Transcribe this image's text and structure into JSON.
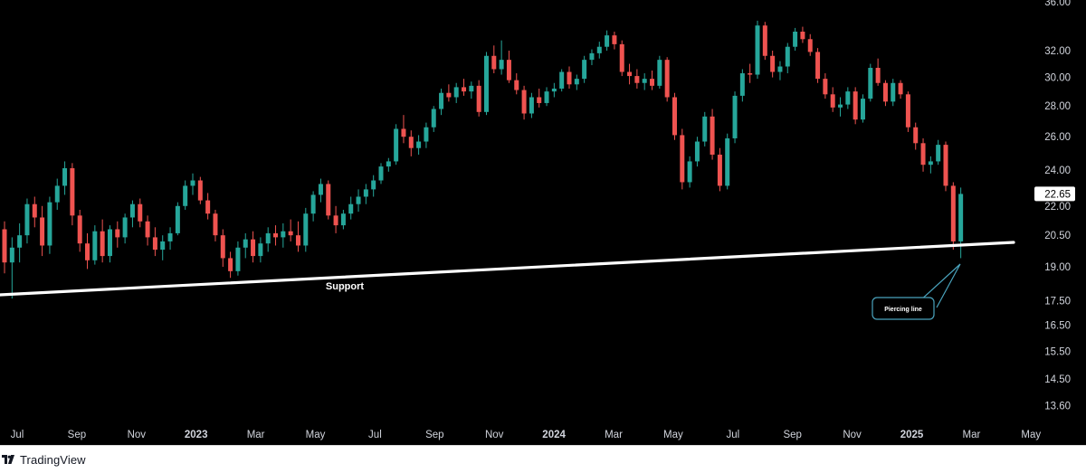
{
  "chart_data": {
    "type": "candlestick",
    "title": "",
    "timeframe": "weekly",
    "y_ticks": [
      "36.00",
      "32.00",
      "30.00",
      "28.00",
      "26.00",
      "24.00",
      "22.00",
      "20.50",
      "19.00",
      "17.50",
      "16.50",
      "15.50",
      "14.50",
      "13.60"
    ],
    "y_scale": "log",
    "ylim": [
      12.7,
      36.5
    ],
    "x_ticks": [
      {
        "label": "Jul",
        "date": "2022-07",
        "bold": false
      },
      {
        "label": "Sep",
        "date": "2022-09",
        "bold": false
      },
      {
        "label": "Nov",
        "date": "2022-11",
        "bold": false
      },
      {
        "label": "2023",
        "date": "2023-01",
        "bold": true
      },
      {
        "label": "Mar",
        "date": "2023-03",
        "bold": false
      },
      {
        "label": "May",
        "date": "2023-05",
        "bold": false
      },
      {
        "label": "Jul",
        "date": "2023-07",
        "bold": false
      },
      {
        "label": "Sep",
        "date": "2023-09",
        "bold": false
      },
      {
        "label": "Nov",
        "date": "2023-11",
        "bold": false
      },
      {
        "label": "2024",
        "date": "2024-01",
        "bold": true
      },
      {
        "label": "Mar",
        "date": "2024-03",
        "bold": false
      },
      {
        "label": "May",
        "date": "2024-05",
        "bold": false
      },
      {
        "label": "Jul",
        "date": "2024-07",
        "bold": false
      },
      {
        "label": "Sep",
        "date": "2024-09",
        "bold": false
      },
      {
        "label": "Nov",
        "date": "2024-11",
        "bold": false
      },
      {
        "label": "2025",
        "date": "2025-01",
        "bold": true
      },
      {
        "label": "Mar",
        "date": "2025-03",
        "bold": false
      },
      {
        "label": "May",
        "date": "2025-05",
        "bold": false
      }
    ],
    "last_price": "22.65",
    "last_price_value": 22.65,
    "up_color": "#26a69a",
    "down_color": "#ef5350",
    "support_line": {
      "label": "Support",
      "start": {
        "date": "2022-06",
        "value": 17.7
      },
      "end": {
        "date": "2025-05",
        "value": 20.1
      }
    },
    "annotation": {
      "label": "Piercing line",
      "target_date": "2025-04",
      "target_value": 19.5
    },
    "series": [
      {
        "name": "",
        "ohlc": [
          [
            20.8,
            21.2,
            18.7,
            19.2
          ],
          [
            19.2,
            20.4,
            17.6,
            19.9
          ],
          [
            19.9,
            21.1,
            19.2,
            20.5
          ],
          [
            20.5,
            22.4,
            20.1,
            22.1
          ],
          [
            22.1,
            22.5,
            20.9,
            21.4
          ],
          [
            21.4,
            22.0,
            19.5,
            20.0
          ],
          [
            20.0,
            22.5,
            19.6,
            22.2
          ],
          [
            22.2,
            23.5,
            21.8,
            23.1
          ],
          [
            23.1,
            24.5,
            22.6,
            24.1
          ],
          [
            24.1,
            24.4,
            21.0,
            21.5
          ],
          [
            21.5,
            21.8,
            19.7,
            20.1
          ],
          [
            20.1,
            20.6,
            18.9,
            19.3
          ],
          [
            19.3,
            21.0,
            19.1,
            20.7
          ],
          [
            20.7,
            21.3,
            19.2,
            19.5
          ],
          [
            19.5,
            21.0,
            19.2,
            20.8
          ],
          [
            20.8,
            21.2,
            19.9,
            20.4
          ],
          [
            20.4,
            21.6,
            20.1,
            21.4
          ],
          [
            21.4,
            22.3,
            20.9,
            22.1
          ],
          [
            22.1,
            22.4,
            20.9,
            21.2
          ],
          [
            21.2,
            21.5,
            20.0,
            20.4
          ],
          [
            20.4,
            20.9,
            19.5,
            19.8
          ],
          [
            19.8,
            20.5,
            19.3,
            20.2
          ],
          [
            20.2,
            20.9,
            19.8,
            20.6
          ],
          [
            20.6,
            22.2,
            20.5,
            22.0
          ],
          [
            22.0,
            23.4,
            21.8,
            23.1
          ],
          [
            23.1,
            23.8,
            22.6,
            23.4
          ],
          [
            23.4,
            23.6,
            22.1,
            22.3
          ],
          [
            22.3,
            22.7,
            21.3,
            21.6
          ],
          [
            21.6,
            21.8,
            20.2,
            20.5
          ],
          [
            20.5,
            20.8,
            19.0,
            19.4
          ],
          [
            19.4,
            19.7,
            18.5,
            18.8
          ],
          [
            18.8,
            20.2,
            18.6,
            19.9
          ],
          [
            19.9,
            20.6,
            19.4,
            20.3
          ],
          [
            20.3,
            20.7,
            19.2,
            19.5
          ],
          [
            19.5,
            20.4,
            19.2,
            20.1
          ],
          [
            20.1,
            20.9,
            19.7,
            20.6
          ],
          [
            20.6,
            21.0,
            20.0,
            20.4
          ],
          [
            20.4,
            21.1,
            19.9,
            20.7
          ],
          [
            20.7,
            21.3,
            20.2,
            20.5
          ],
          [
            20.5,
            21.2,
            19.7,
            20.0
          ],
          [
            20.0,
            21.9,
            19.7,
            21.6
          ],
          [
            21.6,
            22.8,
            21.2,
            22.6
          ],
          [
            22.6,
            23.5,
            22.2,
            23.2
          ],
          [
            23.2,
            23.4,
            21.3,
            21.5
          ],
          [
            21.5,
            22.0,
            20.6,
            21.0
          ],
          [
            21.0,
            21.8,
            20.8,
            21.6
          ],
          [
            21.6,
            22.5,
            21.3,
            22.1
          ],
          [
            22.1,
            22.9,
            21.7,
            22.5
          ],
          [
            22.5,
            23.2,
            22.1,
            22.9
          ],
          [
            22.9,
            23.7,
            22.5,
            23.4
          ],
          [
            23.4,
            24.4,
            23.2,
            24.2
          ],
          [
            24.2,
            24.7,
            23.9,
            24.5
          ],
          [
            24.5,
            26.8,
            24.3,
            26.5
          ],
          [
            26.5,
            27.4,
            25.6,
            26.0
          ],
          [
            26.0,
            26.4,
            24.8,
            25.3
          ],
          [
            25.3,
            26.1,
            24.9,
            25.7
          ],
          [
            25.7,
            26.9,
            25.3,
            26.6
          ],
          [
            26.6,
            28.0,
            26.3,
            27.8
          ],
          [
            27.8,
            29.2,
            27.4,
            28.9
          ],
          [
            28.9,
            29.5,
            28.3,
            28.6
          ],
          [
            28.6,
            29.6,
            28.2,
            29.3
          ],
          [
            29.3,
            29.9,
            28.7,
            29.0
          ],
          [
            29.0,
            29.7,
            28.5,
            29.4
          ],
          [
            29.4,
            29.8,
            27.3,
            27.6
          ],
          [
            27.6,
            31.9,
            27.4,
            31.6
          ],
          [
            31.6,
            32.4,
            30.3,
            30.6
          ],
          [
            30.6,
            32.8,
            30.2,
            31.3
          ],
          [
            31.3,
            32.0,
            29.6,
            29.8
          ],
          [
            29.8,
            30.3,
            28.8,
            29.1
          ],
          [
            29.1,
            29.4,
            27.1,
            27.5
          ],
          [
            27.5,
            28.9,
            27.2,
            28.6
          ],
          [
            28.6,
            29.2,
            27.9,
            28.2
          ],
          [
            28.2,
            29.3,
            28.0,
            29.0
          ],
          [
            29.0,
            29.6,
            28.6,
            29.2
          ],
          [
            29.2,
            30.6,
            29.0,
            30.4
          ],
          [
            30.4,
            30.8,
            29.2,
            29.5
          ],
          [
            29.5,
            30.2,
            29.1,
            29.9
          ],
          [
            29.9,
            31.6,
            29.6,
            31.3
          ],
          [
            31.3,
            32.1,
            30.9,
            31.8
          ],
          [
            31.8,
            32.7,
            31.4,
            32.3
          ],
          [
            32.3,
            33.6,
            32.0,
            33.2
          ],
          [
            33.2,
            33.5,
            32.1,
            32.5
          ],
          [
            32.5,
            32.8,
            30.1,
            30.4
          ],
          [
            30.4,
            31.0,
            29.5,
            30.1
          ],
          [
            30.1,
            30.6,
            29.2,
            29.6
          ],
          [
            29.6,
            30.3,
            29.1,
            29.9
          ],
          [
            29.9,
            30.5,
            29.1,
            29.4
          ],
          [
            29.4,
            31.6,
            29.2,
            31.3
          ],
          [
            31.3,
            31.5,
            28.3,
            28.6
          ],
          [
            28.6,
            28.9,
            25.8,
            26.1
          ],
          [
            26.1,
            26.5,
            22.9,
            23.3
          ],
          [
            23.3,
            24.8,
            23.0,
            24.5
          ],
          [
            24.5,
            26.0,
            24.2,
            25.7
          ],
          [
            25.7,
            27.6,
            25.4,
            27.3
          ],
          [
            27.3,
            27.8,
            24.6,
            24.9
          ],
          [
            24.9,
            25.3,
            22.8,
            23.1
          ],
          [
            23.1,
            26.2,
            22.9,
            25.9
          ],
          [
            25.9,
            29.0,
            25.6,
            28.7
          ],
          [
            28.7,
            30.6,
            28.3,
            30.3
          ],
          [
            30.3,
            31.0,
            29.6,
            30.2
          ],
          [
            30.2,
            34.4,
            29.9,
            34.0
          ],
          [
            34.0,
            34.3,
            31.3,
            31.6
          ],
          [
            31.6,
            32.0,
            30.0,
            30.4
          ],
          [
            30.4,
            31.2,
            29.8,
            30.8
          ],
          [
            30.8,
            32.6,
            30.3,
            32.3
          ],
          [
            32.3,
            33.8,
            32.0,
            33.5
          ],
          [
            33.5,
            33.9,
            32.6,
            32.9
          ],
          [
            32.9,
            33.3,
            31.6,
            31.9
          ],
          [
            31.9,
            32.2,
            29.6,
            29.9
          ],
          [
            29.9,
            30.3,
            28.5,
            28.8
          ],
          [
            28.8,
            29.3,
            27.6,
            27.9
          ],
          [
            27.9,
            28.6,
            27.3,
            28.1
          ],
          [
            28.1,
            29.3,
            27.8,
            29.0
          ],
          [
            29.0,
            29.3,
            26.8,
            27.1
          ],
          [
            27.1,
            28.8,
            26.9,
            28.5
          ],
          [
            28.5,
            31.0,
            28.3,
            30.7
          ],
          [
            30.7,
            31.4,
            29.4,
            29.6
          ],
          [
            29.6,
            29.8,
            28.0,
            28.3
          ],
          [
            28.3,
            29.9,
            28.0,
            29.6
          ],
          [
            29.6,
            29.8,
            28.5,
            28.8
          ],
          [
            28.8,
            29.0,
            26.3,
            26.6
          ],
          [
            26.6,
            26.9,
            25.2,
            25.6
          ],
          [
            25.6,
            25.9,
            23.9,
            24.3
          ],
          [
            24.3,
            24.8,
            23.8,
            24.5
          ],
          [
            24.5,
            25.8,
            24.3,
            25.5
          ],
          [
            25.5,
            25.7,
            22.8,
            23.1
          ],
          [
            23.1,
            23.3,
            19.8,
            20.2
          ],
          [
            20.2,
            23.0,
            19.4,
            22.65
          ]
        ]
      }
    ]
  }
}
